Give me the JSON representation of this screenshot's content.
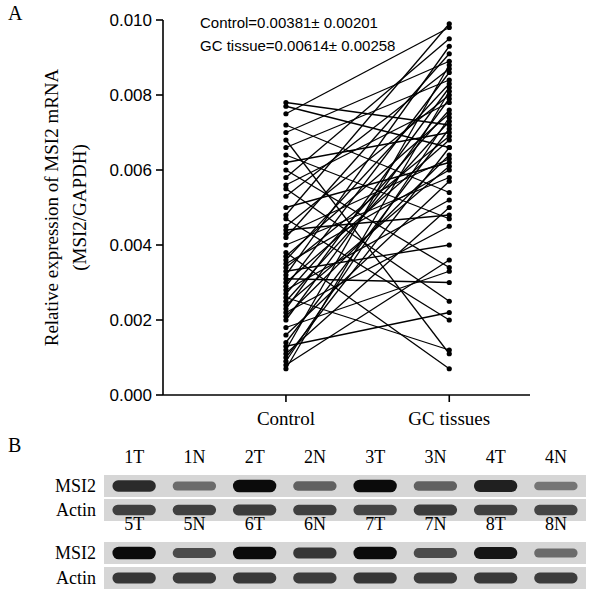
{
  "chart_data": [
    {
      "type": "line",
      "panel_label": "A",
      "marker": "circle",
      "color": "#000000",
      "y_label": [
        "Relative expression of MSI2 mRNA",
        "(MSI2/GAPDH)"
      ],
      "annotations": [
        "Control=0.00381± 0.00201",
        "GC tissue=0.00614± 0.00258"
      ],
      "categories": [
        "Control",
        "GC tissues"
      ],
      "ylim": [
        0,
        0.01
      ],
      "yticks": [
        {
          "value": 0,
          "label": "0.000"
        },
        {
          "value": 0.002,
          "label": "0.002"
        },
        {
          "value": 0.004,
          "label": "0.004"
        },
        {
          "value": 0.006,
          "label": "0.006"
        },
        {
          "value": 0.008,
          "label": "0.008"
        },
        {
          "value": 0.01,
          "label": "0.010"
        }
      ],
      "series": [
        {
          "values": [
            0.0078,
            0.0072
          ]
        },
        {
          "values": [
            0.0077,
            0.0066
          ]
        },
        {
          "values": [
            0.0075,
            0.0098
          ]
        },
        {
          "values": [
            0.0072,
            0.0054
          ]
        },
        {
          "values": [
            0.007,
            0.0089
          ]
        },
        {
          "values": [
            0.0068,
            0.0011
          ]
        },
        {
          "values": [
            0.0066,
            0.0084
          ]
        },
        {
          "values": [
            0.0064,
            0.0047
          ]
        },
        {
          "values": [
            0.0062,
            0.007
          ]
        },
        {
          "values": [
            0.006,
            0.0034
          ]
        },
        {
          "values": [
            0.0058,
            0.0095
          ]
        },
        {
          "values": [
            0.0056,
            0.0078
          ]
        },
        {
          "values": [
            0.0055,
            0.0025
          ]
        },
        {
          "values": [
            0.0053,
            0.0087
          ]
        },
        {
          "values": [
            0.005,
            0.0062
          ]
        },
        {
          "values": [
            0.0048,
            0.0099
          ]
        },
        {
          "values": [
            0.0047,
            0.002
          ]
        },
        {
          "values": [
            0.0045,
            0.008
          ]
        },
        {
          "values": [
            0.0043,
            0.0063
          ]
        },
        {
          "values": [
            0.0042,
            0.0091
          ]
        },
        {
          "values": [
            0.004,
            0.0058
          ]
        },
        {
          "values": [
            0.0038,
            0.0007
          ]
        },
        {
          "values": [
            0.0037,
            0.0075
          ]
        },
        {
          "values": [
            0.0036,
            0.0083
          ]
        },
        {
          "values": [
            0.0034,
            0.0069
          ]
        },
        {
          "values": [
            0.0033,
            0.004
          ]
        },
        {
          "values": [
            0.0032,
            0.0093
          ]
        },
        {
          "values": [
            0.0031,
            0.003
          ]
        },
        {
          "values": [
            0.003,
            0.0068
          ]
        },
        {
          "values": [
            0.0029,
            0.0086
          ]
        },
        {
          "values": [
            0.0028,
            0.0052
          ]
        },
        {
          "values": [
            0.0027,
            0.0076
          ]
        },
        {
          "values": [
            0.0026,
            0.0012
          ]
        },
        {
          "values": [
            0.0025,
            0.0073
          ]
        },
        {
          "values": [
            0.0024,
            0.0061
          ]
        },
        {
          "values": [
            0.0023,
            0.0082
          ]
        },
        {
          "values": [
            0.0022,
            0.0045
          ]
        },
        {
          "values": [
            0.0021,
            0.0064
          ]
        },
        {
          "values": [
            0.002,
            0.0079
          ]
        },
        {
          "values": [
            0.0018,
            0.0033
          ]
        },
        {
          "values": [
            0.0016,
            0.0057
          ]
        },
        {
          "values": [
            0.0014,
            0.0071
          ]
        },
        {
          "values": [
            0.0013,
            0.0022
          ]
        },
        {
          "values": [
            0.0012,
            0.0088
          ]
        },
        {
          "values": [
            0.0011,
            0.005
          ]
        },
        {
          "values": [
            0.001,
            0.0066
          ]
        },
        {
          "values": [
            0.0009,
            0.0074
          ]
        },
        {
          "values": [
            0.0008,
            0.0036
          ]
        },
        {
          "values": [
            0.0007,
            0.0081
          ]
        },
        {
          "values": [
            0.0035,
            0.006
          ]
        },
        {
          "values": [
            0.0044,
            0.0048
          ]
        }
      ]
    },
    {
      "type": "blot",
      "panel_label": "B",
      "panels": [
        {
          "lanes": [
            "1T",
            "1N",
            "2T",
            "2N",
            "3T",
            "3N",
            "4T",
            "4N"
          ],
          "rows": [
            {
              "label": "MSI2",
              "values": [
                0.8,
                0.5,
                0.95,
                0.55,
                0.95,
                0.55,
                0.85,
                0.45
              ]
            },
            {
              "label": "Actin",
              "values": [
                0.7,
                0.7,
                0.72,
                0.7,
                0.68,
                0.72,
                0.7,
                0.68
              ]
            }
          ]
        },
        {
          "lanes": [
            "5T",
            "5N",
            "6T",
            "6N",
            "7T",
            "7N",
            "8T",
            "8N"
          ],
          "rows": [
            {
              "label": "MSI2",
              "values": [
                0.95,
                0.65,
                0.95,
                0.75,
                0.95,
                0.65,
                0.9,
                0.5
              ]
            },
            {
              "label": "Actin",
              "values": [
                0.75,
                0.72,
                0.74,
                0.72,
                0.75,
                0.72,
                0.74,
                0.72
              ]
            }
          ]
        }
      ]
    }
  ]
}
